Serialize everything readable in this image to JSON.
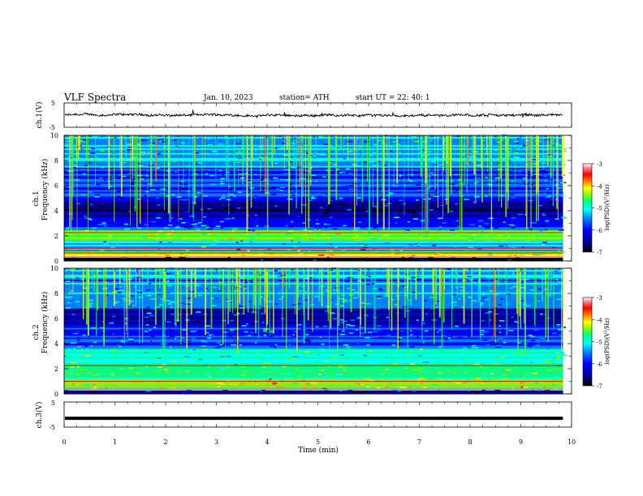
{
  "header": {
    "title": "VLF  Spectra",
    "date": "Jan. 10, 2023",
    "station": "station= ATH",
    "start": "start  UT  =    22: 40: 1"
  },
  "chart_data": [
    {
      "type": "line",
      "name": "ch1-waveform",
      "ylabel": "ch.1(V)",
      "ylim": [
        -5,
        5
      ],
      "yticklabels": [
        "5",
        "-5"
      ],
      "xlim": [
        0,
        10
      ],
      "data_end_x": 9.83,
      "trace": "noisy waveform near 0 V with amplitude about 1 V"
    },
    {
      "type": "heatmap",
      "name": "ch1-spectrogram",
      "ylabel": "ch.1\nFrequency (kHz)",
      "ylim": [
        0,
        10
      ],
      "yticks": [
        0,
        2,
        4,
        6,
        8,
        10
      ],
      "xlim": [
        0,
        10
      ],
      "data_end_x": 9.83,
      "colorbar": {
        "label": "log(PSD) (V²/Hz)",
        "range": [
          -7,
          -3
        ],
        "ticks": [
          "-3",
          "-4",
          "-5",
          "-6",
          "-7"
        ]
      }
    },
    {
      "type": "heatmap",
      "name": "ch2-spectrogram",
      "ylabel": "ch.2\nFrequency (kHz)",
      "ylim": [
        0,
        10
      ],
      "yticks": [
        0,
        2,
        4,
        6,
        8,
        10
      ],
      "xlim": [
        0,
        10
      ],
      "data_end_x": 9.83,
      "colorbar": {
        "label": "log(PSD) (V²/Hz)",
        "range": [
          -7,
          -3
        ],
        "ticks": [
          "-3",
          "-4",
          "-5",
          "-6",
          "-7"
        ]
      }
    },
    {
      "type": "line",
      "name": "ch3-waveform",
      "ylabel": "ch.3(V)",
      "ylim": [
        -5,
        5
      ],
      "yticklabels": [
        "5",
        "-5"
      ],
      "xlim": [
        0,
        10
      ],
      "data_end_x": 9.83,
      "trace": "flat thick line at about -1.5 V"
    }
  ],
  "x_axis": {
    "label": "Time  (min)",
    "ticks": [
      "0",
      "1",
      "2",
      "3",
      "4",
      "5",
      "6",
      "7",
      "8",
      "9",
      "10"
    ]
  },
  "colors": {
    "colormap": [
      "#000000",
      "#00008b",
      "#0000ff",
      "#0080ff",
      "#00ffff",
      "#00ff80",
      "#80ff00",
      "#ffff00",
      "#ff8000",
      "#ff0000",
      "#ff8080",
      "#ffffff"
    ]
  }
}
